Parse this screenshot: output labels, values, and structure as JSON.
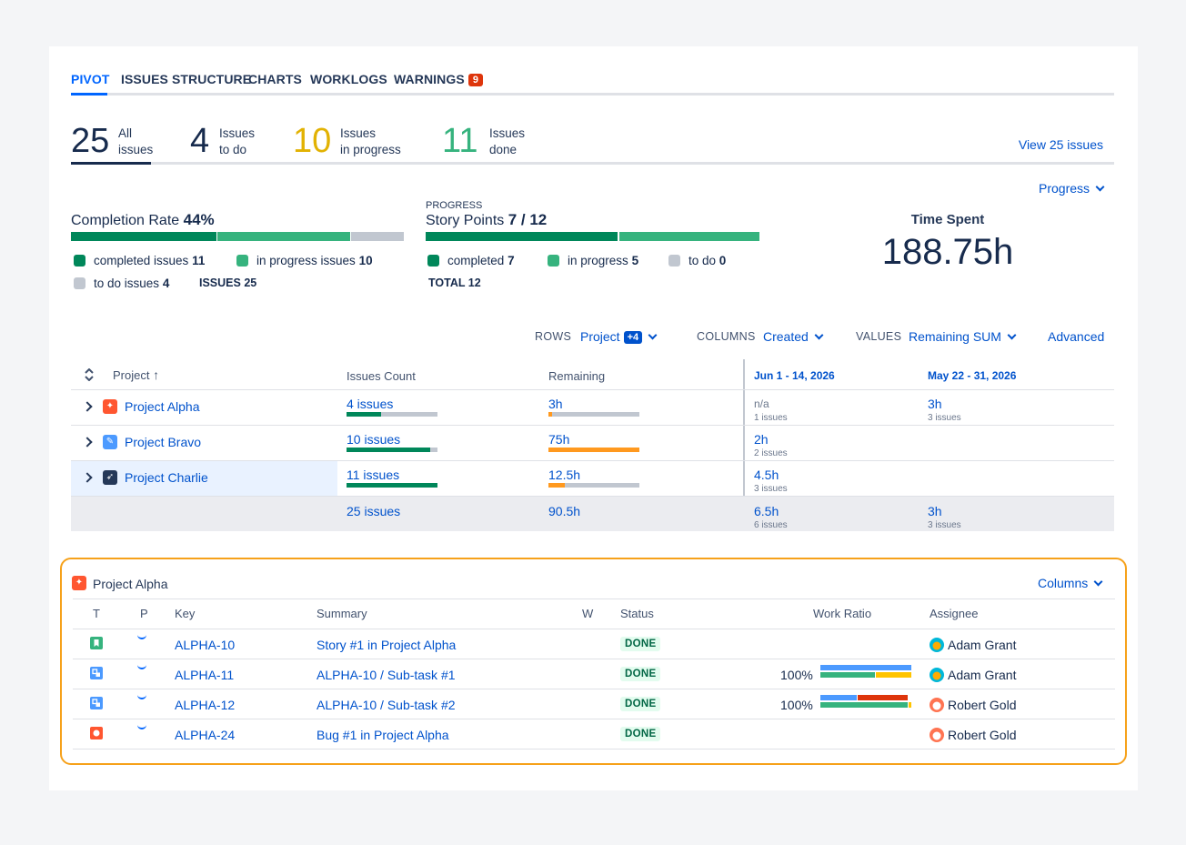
{
  "tabs": [
    {
      "label": "PIVOT",
      "active": true
    },
    {
      "label": "ISSUES STRUCTURE"
    },
    {
      "label": "CHARTS"
    },
    {
      "label": "WORKLOGS"
    },
    {
      "label": "WARNINGS",
      "badge": "9"
    }
  ],
  "stats": [
    {
      "num": "25",
      "label": "All\nissues",
      "color": "#172b4d"
    },
    {
      "num": "4",
      "label": "Issues\nto do",
      "color": "#172b4d"
    },
    {
      "num": "10",
      "label": "Issues\nin progress",
      "color": "#e2b203"
    },
    {
      "num": "11",
      "label": "Issues\ndone",
      "color": "#36b37e"
    }
  ],
  "view_issues_link": "View 25 issues",
  "progress_dropdown": "Progress",
  "completion": {
    "title": "Completion Rate",
    "rate": "44%",
    "completed_label": "completed issues",
    "completed": "11",
    "in_progress_label": "in progress issues",
    "in_progress": "10",
    "todo_label": "to do issues",
    "todo": "4",
    "issues_label": "ISSUES",
    "issues_total": "25"
  },
  "story_points": {
    "caption": "PROGRESS",
    "title": "Story Points",
    "value": "7 / 12",
    "completed_label": "completed",
    "completed": "7",
    "in_progress_label": "in progress",
    "in_progress": "5",
    "todo_label": "to do",
    "todo": "0",
    "total_label": "TOTAL",
    "total": "12"
  },
  "time_spent": {
    "title": "Time Spent",
    "value": "188.75h"
  },
  "controls": {
    "rows_label": "ROWS",
    "rows_value": "Project",
    "rows_badge": "+4",
    "columns_label": "COLUMNS",
    "columns_value": "Created",
    "values_label": "VALUES",
    "values_value": "Remaining SUM",
    "advanced": "Advanced"
  },
  "pivot": {
    "headers": {
      "project": "Project",
      "count": "Issues Count",
      "remaining": "Remaining",
      "col1": "Jun 1 - 14, 2026",
      "col2": "May 22 - 31, 2026"
    },
    "rows": [
      {
        "name": "Project Alpha",
        "count": "4 issues",
        "count_fill": 0.38,
        "remaining": "3h",
        "rem_fill": 0.04,
        "c1": "n/a",
        "c1_sub": "1 issues",
        "c2": "3h",
        "c2_sub": "3 issues"
      },
      {
        "name": "Project Bravo",
        "count": "10 issues",
        "count_fill": 0.92,
        "remaining": "75h",
        "rem_fill": 1.0,
        "c1": "2h",
        "c1_sub": "2 issues",
        "c2": "",
        "c2_sub": ""
      },
      {
        "name": "Project Charlie",
        "count": "11 issues",
        "count_fill": 1.0,
        "remaining": "12.5h",
        "rem_fill": 0.18,
        "c1": "4.5h",
        "c1_sub": "3 issues",
        "c2": "",
        "c2_sub": ""
      }
    ],
    "total": {
      "count": "25 issues",
      "remaining": "90.5h",
      "c1": "6.5h",
      "c1_sub": "6 issues",
      "c2": "3h",
      "c2_sub": "3 issues"
    }
  },
  "detail": {
    "title": "Project Alpha",
    "columns_button": "Columns",
    "headers": {
      "t": "T",
      "p": "P",
      "key": "Key",
      "summary": "Summary",
      "w": "W",
      "status": "Status",
      "ratio": "Work Ratio",
      "assignee": "Assignee"
    },
    "rows": [
      {
        "type": "story",
        "key": "ALPHA-10",
        "summary": "Story #1 in Project Alpha",
        "status": "DONE",
        "ratio": "",
        "assignee": "Adam Grant"
      },
      {
        "type": "subtask",
        "key": "ALPHA-11",
        "summary": "ALPHA-10 /  Sub-task #1",
        "status": "DONE",
        "ratio": "100%",
        "assignee": "Adam Grant"
      },
      {
        "type": "subtask",
        "key": "ALPHA-12",
        "summary": "ALPHA-10 /  Sub-task #2",
        "status": "DONE",
        "ratio": "100%",
        "assignee": "Robert Gold"
      },
      {
        "type": "bug",
        "key": "ALPHA-24",
        "summary": "Bug #1 in Project Alpha",
        "status": "DONE",
        "ratio": "",
        "assignee": "Robert Gold"
      }
    ]
  },
  "colors": {
    "green_dark": "#00875a",
    "green": "#36b37e",
    "grey": "#c1c7d0",
    "orange": "#ff991f",
    "blue": "#0052cc"
  }
}
